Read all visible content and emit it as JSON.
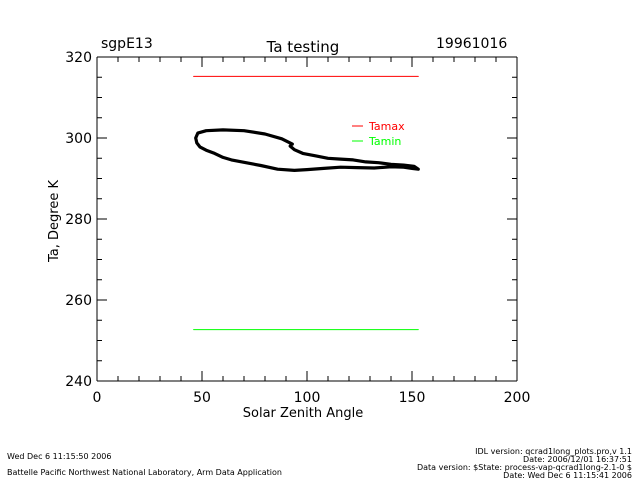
{
  "header": {
    "site": "sgpE13",
    "date": "19961016"
  },
  "footer": {
    "left_lines": [
      "Wed Dec  6 11:15:50 2006",
      "Battelle Pacific Northwest National Laboratory, Arm Data Application"
    ],
    "right_lines": [
      "IDL version: qcrad1long_plots.pro,v 1.1",
      "Date: 2006/12/01 16:37:51",
      "Data version: $State: process-vap-qcrad1long-2.1-0 $",
      "Date: Wed Dec  6 11:15:41 2006"
    ]
  },
  "chart_data": {
    "type": "line",
    "title": "Ta testing",
    "xlabel": "Solar Zenith Angle",
    "ylabel": "Ta, Degree K",
    "xlim": [
      0,
      200
    ],
    "ylim": [
      240,
      320
    ],
    "xticks": [
      0,
      50,
      100,
      150,
      200
    ],
    "yticks": [
      240,
      260,
      280,
      300,
      320
    ],
    "legend": {
      "position": "top-right",
      "entries": [
        "Tamax",
        "Tamin"
      ]
    },
    "colors": {
      "Tamax": "#ff0000",
      "Tamin": "#00ff00",
      "Ta": "#000000"
    },
    "series": [
      {
        "name": "Tamax",
        "x": [
          46,
          153
        ],
        "y": [
          315.2,
          315.2
        ]
      },
      {
        "name": "Tamin",
        "x": [
          46,
          153
        ],
        "y": [
          252.7,
          252.7
        ]
      },
      {
        "name": "Ta",
        "x": [
          93,
          88,
          80,
          70,
          60,
          52,
          48,
          47,
          47.5,
          49,
          52,
          56,
          60,
          64,
          70,
          78,
          86,
          94,
          100,
          108,
          116,
          124,
          132,
          140,
          146,
          150,
          153,
          151,
          146,
          140,
          134,
          128,
          122,
          116,
          110,
          104,
          98,
          94,
          92
        ],
        "y": [
          298.5,
          299.8,
          301,
          301.8,
          302.0,
          301.8,
          301.2,
          300,
          298.8,
          297.8,
          297.0,
          296.2,
          295.2,
          294.6,
          294.0,
          293.2,
          292.3,
          292.0,
          292.2,
          292.5,
          292.8,
          292.7,
          292.6,
          292.9,
          292.8,
          292.5,
          292.3,
          293.0,
          293.3,
          293.5,
          293.9,
          294.1,
          294.6,
          294.8,
          295.0,
          295.6,
          296.2,
          297.1,
          298.0
        ]
      }
    ]
  }
}
